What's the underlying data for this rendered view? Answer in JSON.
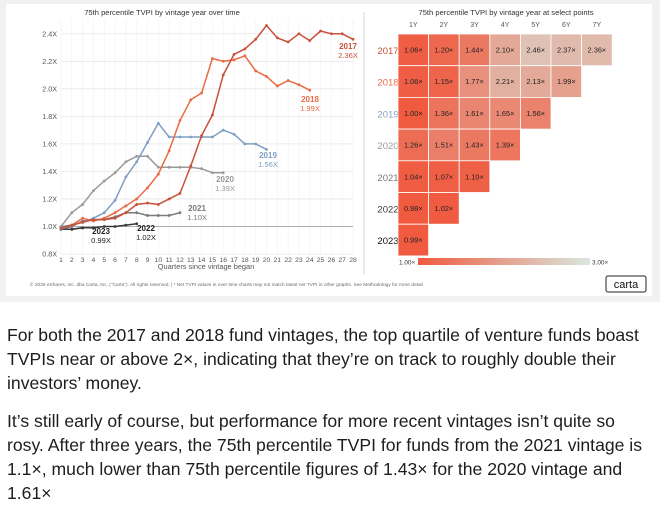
{
  "colors": {
    "panel_bg": "#f1f1f1",
    "v2017": "#c8513a",
    "v2018": "#ea6a46",
    "v2019": "#7f9fc2",
    "v2020": "#9a9a9a",
    "v2021": "#7a7a7a",
    "v2022": "#3a3a3a",
    "v2023": "#111111",
    "heat_high": "#f05a3f",
    "heat_low": "#d9e8df",
    "divider": "#d6d6d6"
  },
  "chart_data": [
    {
      "type": "line",
      "title": "75th percentile TVPI by vintage year over time",
      "xlabel": "Quarters since vintage began",
      "ylabel": "",
      "x_ticks": [
        "1",
        "2",
        "3",
        "4",
        "5",
        "6",
        "7",
        "8",
        "9",
        "10",
        "11",
        "12",
        "13",
        "14",
        "15",
        "16",
        "17",
        "18",
        "19",
        "20",
        "21",
        "22",
        "23",
        "24",
        "25",
        "26",
        "27",
        "28"
      ],
      "xlim": [
        1,
        28
      ],
      "ylim": [
        0.8,
        2.5
      ],
      "y_ticks": [
        0.8,
        1.0,
        1.2,
        1.4,
        1.6,
        1.8,
        2.0,
        2.2,
        2.4
      ],
      "y_tick_labels": [
        "0.8X",
        "1.0X",
        "1.2X",
        "1.4X",
        "1.6X",
        "1.8X",
        "2.0X",
        "2.2X",
        "2.4X"
      ],
      "grid": true,
      "series": [
        {
          "name": "2017",
          "end_label": "2.36X",
          "color_key": "v2017",
          "x": [
            1,
            2,
            3,
            4,
            5,
            6,
            7,
            8,
            9,
            10,
            11,
            12,
            13,
            14,
            15,
            16,
            17,
            18,
            19,
            20,
            21,
            22,
            23,
            24,
            25,
            26,
            27,
            28
          ],
          "values": [
            0.99,
            1.01,
            1.03,
            1.05,
            1.05,
            1.06,
            1.1,
            1.16,
            1.17,
            1.16,
            1.2,
            1.24,
            1.44,
            1.66,
            1.81,
            2.1,
            2.25,
            2.29,
            2.36,
            2.46,
            2.37,
            2.34,
            2.4,
            2.35,
            2.42,
            2.4,
            2.4,
            2.36
          ]
        },
        {
          "name": "2018",
          "end_label": "1.99X",
          "color_key": "v2018",
          "x": [
            1,
            2,
            3,
            4,
            5,
            6,
            7,
            8,
            9,
            10,
            11,
            12,
            13,
            14,
            15,
            16,
            17,
            18,
            19,
            20,
            21,
            22,
            23,
            24
          ],
          "values": [
            0.99,
            1.01,
            1.06,
            1.04,
            1.06,
            1.1,
            1.15,
            1.2,
            1.28,
            1.38,
            1.55,
            1.77,
            1.92,
            1.97,
            2.22,
            2.2,
            2.21,
            2.24,
            2.13,
            2.09,
            2.02,
            2.06,
            2.03,
            1.99
          ]
        },
        {
          "name": "2019",
          "end_label": "1.56X",
          "color_key": "v2019",
          "x": [
            1,
            2,
            3,
            4,
            5,
            6,
            7,
            8,
            9,
            10,
            11,
            12,
            13,
            14,
            15,
            16,
            17,
            18,
            19,
            20
          ],
          "values": [
            1.0,
            1.01,
            1.03,
            1.06,
            1.1,
            1.19,
            1.36,
            1.47,
            1.61,
            1.75,
            1.65,
            1.65,
            1.65,
            1.65,
            1.65,
            1.7,
            1.67,
            1.6,
            1.6,
            1.56
          ]
        },
        {
          "name": "2020",
          "end_label": "1.39X",
          "color_key": "v2020",
          "x": [
            1,
            2,
            3,
            4,
            5,
            6,
            7,
            8,
            9,
            10,
            11,
            12,
            13,
            14,
            15,
            16
          ],
          "values": [
            1.0,
            1.1,
            1.16,
            1.26,
            1.33,
            1.39,
            1.47,
            1.51,
            1.51,
            1.43,
            1.43,
            1.43,
            1.43,
            1.42,
            1.39,
            1.39
          ]
        },
        {
          "name": "2021",
          "end_label": "1.10X",
          "color_key": "v2021",
          "x": [
            1,
            2,
            3,
            4,
            5,
            6,
            7,
            8,
            9,
            10,
            11,
            12
          ],
          "values": [
            0.98,
            1.0,
            1.04,
            1.05,
            1.05,
            1.07,
            1.1,
            1.1,
            1.08,
            1.08,
            1.08,
            1.1
          ]
        },
        {
          "name": "2022",
          "end_label": "1.02X",
          "color_key": "v2022",
          "x": [
            1,
            2,
            3,
            4,
            5,
            6,
            7,
            8
          ],
          "values": [
            0.98,
            0.98,
            0.99,
            0.99,
            1.0,
            1.0,
            1.01,
            1.02
          ]
        },
        {
          "name": "2023",
          "end_label": "0.99X",
          "color_key": "v2023",
          "x": [
            1,
            2,
            3,
            4
          ],
          "values": [
            0.98,
            0.98,
            0.99,
            0.99
          ]
        }
      ]
    },
    {
      "type": "heatmap",
      "title": "75th percentile TVPI by vintage year at select points",
      "columns": [
        "1Y",
        "2Y",
        "3Y",
        "4Y",
        "5Y",
        "6Y",
        "7Y"
      ],
      "rows": [
        {
          "vintage": "2017",
          "color_key": "v2017",
          "cells": [
            "1.06×",
            "1.20×",
            "1.44×",
            "2.10×",
            "2.46×",
            "2.37×",
            "2.36×"
          ],
          "values": [
            1.06,
            1.2,
            1.44,
            2.1,
            2.46,
            2.37,
            2.36
          ]
        },
        {
          "vintage": "2018",
          "color_key": "v2018",
          "cells": [
            "1.06×",
            "1.15×",
            "1.77×",
            "2.21×",
            "2.13×",
            "1.99×"
          ],
          "values": [
            1.06,
            1.15,
            1.77,
            2.21,
            2.13,
            1.99
          ]
        },
        {
          "vintage": "2019",
          "color_key": "v2019",
          "cells": [
            "1.00×",
            "1.36×",
            "1.61×",
            "1.65×",
            "1.56×"
          ],
          "values": [
            1.0,
            1.36,
            1.61,
            1.65,
            1.56
          ]
        },
        {
          "vintage": "2020",
          "color_key": "v2020",
          "cells": [
            "1.26×",
            "1.51×",
            "1.43×",
            "1.39×"
          ],
          "values": [
            1.26,
            1.51,
            1.43,
            1.39
          ]
        },
        {
          "vintage": "2021",
          "color_key": "v2021",
          "cells": [
            "1.04×",
            "1.07×",
            "1.10×"
          ],
          "values": [
            1.04,
            1.07,
            1.1
          ]
        },
        {
          "vintage": "2022",
          "color_key": "v2022",
          "cells": [
            "0.98×",
            "1.02×"
          ],
          "values": [
            0.98,
            1.02
          ]
        },
        {
          "vintage": "2023",
          "color_key": "v2023",
          "cells": [
            "0.99×"
          ],
          "values": [
            0.99
          ]
        }
      ],
      "scale_min": 1.0,
      "scale_max": 3.0,
      "legend_min_label": "1.00×",
      "legend_max_label": "3.00×"
    }
  ],
  "footer": {
    "note": "© 2025 eShares, Inc. dba Carta, Inc. (\"Carta\"). All rights reserved.  |  * Net TVPI values in over time charts may not match latest net TVPI in other graphs. See Methodology for more detail",
    "logo": "carta"
  },
  "article": {
    "p1": "For both the 2017 and 2018 fund vintages, the top quartile of venture funds boast TVPIs near or above 2×, indicating that they’re on track to roughly double their investors’ money.",
    "p2": "It’s still early of course, but performance for more recent vintages isn’t quite so rosy. After three years, the 75th percentile TVPI for funds from the 2021 vintage is 1.1×, much lower than 75th percentile figures of 1.43× for the 2020 vintage and 1.61×"
  }
}
